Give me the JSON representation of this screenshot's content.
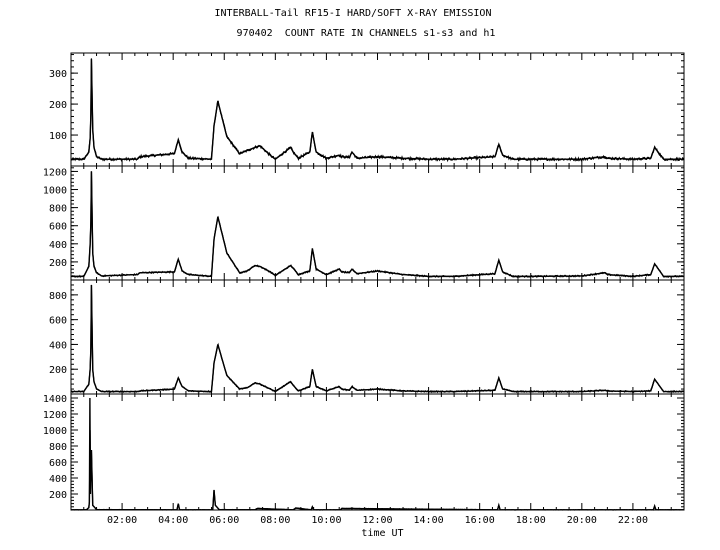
{
  "chart_data": {
    "type": "line",
    "title": "INTERBALL-Tail RF15-I HARD/SOFT X-RAY EMISSION",
    "subtitle": "970402  COUNT RATE IN CHANNELS s1-s3 and h1",
    "xlabel": "time UT",
    "x_tick_labels": [
      "02:00",
      "04:00",
      "06:00",
      "08:00",
      "10:00",
      "12:00",
      "14:00",
      "16:00",
      "18:00",
      "20:00",
      "22:00"
    ],
    "x_ticks_hours": [
      2,
      4,
      6,
      8,
      10,
      12,
      14,
      16,
      18,
      20,
      22
    ],
    "xlim_hours": [
      0,
      24
    ],
    "grid": false,
    "panels": [
      {
        "ylim": [
          0,
          365
        ],
        "y_ticks": [
          100,
          200,
          300
        ],
        "y_tick_labels": [
          "100",
          "200",
          "300"
        ],
        "baseline": 22,
        "noise": 4,
        "x_hours": [
          0.0,
          0.5,
          0.7,
          0.75,
          0.78,
          0.8,
          0.85,
          0.9,
          1.0,
          1.2,
          2.6,
          2.7,
          4.05,
          4.2,
          4.35,
          4.6,
          5.5,
          5.6,
          5.75,
          6.1,
          6.6,
          6.9,
          7.2,
          7.4,
          7.8,
          8.0,
          8.6,
          8.7,
          8.9,
          9.35,
          9.45,
          9.6,
          10.0,
          10.5,
          10.6,
          10.9,
          11.0,
          11.2,
          12.0,
          13.0,
          14.0,
          15.0,
          16.6,
          16.75,
          16.9,
          17.3,
          18.0,
          20.0,
          20.9,
          21.0,
          22.0,
          22.7,
          22.85,
          23.2,
          24.0
        ],
        "values": [
          22,
          22,
          45,
          90,
          170,
          345,
          120,
          60,
          30,
          22,
          22,
          30,
          40,
          85,
          45,
          25,
          22,
          130,
          210,
          95,
          40,
          50,
          60,
          65,
          35,
          22,
          60,
          45,
          25,
          45,
          110,
          45,
          25,
          35,
          30,
          28,
          45,
          25,
          30,
          25,
          22,
          22,
          30,
          70,
          35,
          22,
          22,
          22,
          30,
          25,
          22,
          25,
          60,
          22,
          22
        ]
      },
      {
        "ylim": [
          0,
          1260
        ],
        "y_ticks": [
          200,
          400,
          600,
          800,
          1000,
          1200
        ],
        "y_tick_labels": [
          "200",
          "400",
          "600",
          "800",
          "1000",
          "1200"
        ],
        "baseline": 40,
        "noise": 8,
        "x_hours": [
          0.0,
          0.5,
          0.7,
          0.75,
          0.78,
          0.8,
          0.85,
          0.9,
          1.0,
          1.2,
          2.6,
          2.7,
          4.05,
          4.2,
          4.35,
          4.6,
          5.5,
          5.6,
          5.75,
          6.1,
          6.6,
          6.9,
          7.2,
          7.4,
          7.8,
          8.0,
          8.6,
          8.7,
          8.9,
          9.35,
          9.45,
          9.6,
          10.0,
          10.5,
          10.6,
          10.9,
          11.0,
          11.2,
          12.0,
          13.0,
          14.0,
          15.0,
          16.6,
          16.75,
          16.9,
          17.3,
          18.0,
          20.0,
          20.9,
          21.0,
          22.0,
          22.7,
          22.85,
          23.2,
          24.0
        ],
        "values": [
          40,
          40,
          150,
          400,
          650,
          1200,
          300,
          150,
          80,
          45,
          60,
          80,
          90,
          230,
          100,
          60,
          40,
          450,
          700,
          300,
          80,
          100,
          160,
          150,
          90,
          50,
          160,
          130,
          60,
          100,
          350,
          120,
          60,
          120,
          90,
          80,
          120,
          70,
          100,
          60,
          40,
          40,
          70,
          220,
          90,
          40,
          40,
          45,
          80,
          60,
          40,
          60,
          180,
          40,
          40
        ]
      },
      {
        "ylim": [
          0,
          920
        ],
        "y_ticks": [
          200,
          400,
          600,
          800
        ],
        "y_tick_labels": [
          "200",
          "400",
          "600",
          "800"
        ],
        "baseline": 20,
        "noise": 5,
        "x_hours": [
          0.0,
          0.5,
          0.7,
          0.75,
          0.78,
          0.8,
          0.85,
          0.9,
          1.0,
          1.2,
          2.6,
          2.7,
          4.05,
          4.2,
          4.35,
          4.6,
          5.5,
          5.6,
          5.75,
          6.1,
          6.6,
          6.9,
          7.2,
          7.4,
          7.8,
          8.0,
          8.6,
          8.7,
          8.9,
          9.35,
          9.45,
          9.6,
          10.0,
          10.5,
          10.6,
          10.9,
          11.0,
          11.2,
          12.0,
          13.0,
          14.0,
          15.0,
          16.6,
          16.75,
          16.9,
          17.3,
          18.0,
          20.0,
          20.9,
          21.0,
          22.0,
          22.7,
          22.85,
          23.2,
          24.0
        ],
        "values": [
          20,
          20,
          80,
          200,
          380,
          880,
          200,
          100,
          40,
          20,
          20,
          25,
          40,
          130,
          60,
          25,
          20,
          250,
          400,
          150,
          40,
          50,
          90,
          80,
          40,
          20,
          100,
          70,
          25,
          60,
          200,
          60,
          25,
          60,
          40,
          30,
          60,
          30,
          40,
          25,
          20,
          20,
          30,
          130,
          40,
          20,
          20,
          20,
          30,
          25,
          20,
          25,
          120,
          20,
          20
        ]
      },
      {
        "ylim": [
          0,
          1450
        ],
        "y_ticks": [
          200,
          400,
          600,
          800,
          1000,
          1200,
          1400
        ],
        "y_tick_labels": [
          "200",
          "400",
          "600",
          "800",
          "1000",
          "1200",
          "1400"
        ],
        "baseline": 2,
        "noise": 2,
        "x_hours": [
          0.0,
          0.6,
          0.7,
          0.72,
          0.74,
          0.76,
          0.8,
          0.85,
          1.0,
          4.15,
          4.2,
          4.25,
          5.55,
          5.6,
          5.65,
          5.8,
          7.2,
          7.3,
          8.7,
          8.8,
          9.4,
          9.45,
          9.5,
          10.55,
          10.6,
          16.7,
          16.75,
          16.8,
          22.8,
          22.85,
          22.9,
          24.0
        ],
        "values": [
          2,
          2,
          30,
          100,
          1400,
          200,
          750,
          60,
          5,
          2,
          80,
          2,
          2,
          250,
          60,
          5,
          2,
          20,
          2,
          25,
          2,
          40,
          2,
          2,
          20,
          2,
          60,
          2,
          2,
          50,
          2,
          2
        ]
      }
    ]
  },
  "layout_labels": {
    "title": "INTERBALL-Tail RF15-I HARD/SOFT X-RAY EMISSION",
    "subtitle": "970402  COUNT RATE IN CHANNELS s1-s3 and h1"
  }
}
